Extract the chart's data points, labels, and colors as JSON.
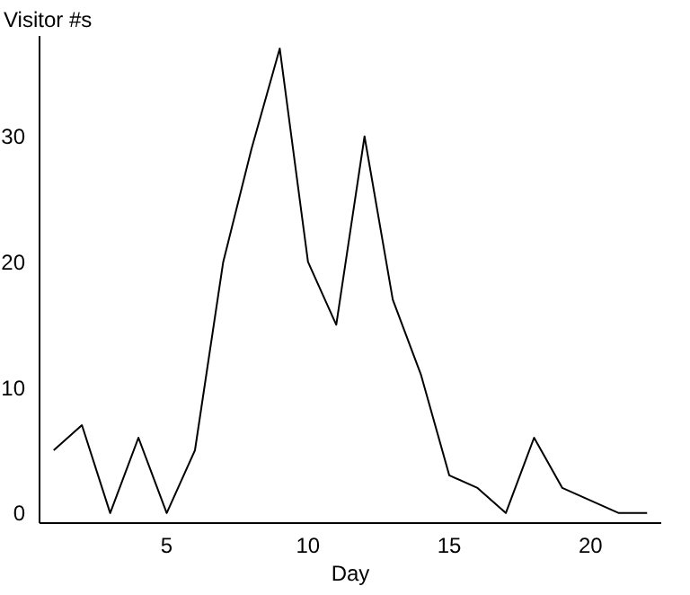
{
  "chart_data": {
    "type": "line",
    "xlabel": "Day",
    "ylabel": "Visitor #s",
    "x": [
      1,
      2,
      3,
      4,
      5,
      6,
      7,
      8,
      9,
      10,
      11,
      12,
      13,
      14,
      15,
      16,
      17,
      18,
      19,
      20,
      21,
      22
    ],
    "series": [
      {
        "color": "#000000",
        "values": [
          5,
          7,
          0,
          6,
          0,
          5,
          20,
          29,
          37,
          20,
          15,
          30,
          17,
          11,
          3,
          2,
          0,
          6,
          2,
          1,
          0,
          0
        ]
      }
    ],
    "xlim": [
      0.5,
      22.5
    ],
    "xticks": [
      5,
      10,
      15,
      20
    ],
    "ylim": [
      -0.8,
      38
    ],
    "yticks": [
      0,
      10,
      20,
      30
    ],
    "grid": false,
    "legend": false,
    "marker": "none",
    "line_style": "solid"
  }
}
